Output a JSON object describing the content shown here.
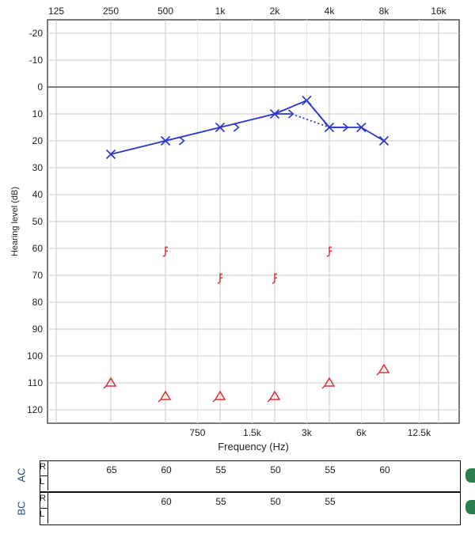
{
  "chart_data": {
    "type": "scatter",
    "xlabel": "Frequency (Hz)",
    "ylabel": "Hearing level (dB)",
    "top_ticks": [
      "125",
      "250",
      "500",
      "1k",
      "2k",
      "4k",
      "8k",
      "16k"
    ],
    "bottom_ticks": [
      "750",
      "1.5k",
      "3k",
      "6k",
      "12.5k"
    ],
    "y_ticks": [
      -20,
      -10,
      0,
      10,
      20,
      30,
      40,
      50,
      60,
      70,
      80,
      90,
      100,
      110,
      120
    ],
    "ylim": [
      -25,
      125
    ],
    "grid": true,
    "series": [
      {
        "marker": "x",
        "color": "#2b35c9",
        "points": [
          {
            "x": 250,
            "y": 25
          },
          {
            "x": 500,
            "y": 20
          },
          {
            "x": 1000,
            "y": 15
          },
          {
            "x": 2000,
            "y": 10
          },
          {
            "x": 3000,
            "y": 5
          },
          {
            "x": 4000,
            "y": 15
          },
          {
            "x": 6000,
            "y": 15
          },
          {
            "x": 8000,
            "y": 20
          }
        ]
      },
      {
        "marker": "x-arrow",
        "color": "#2b35c9",
        "points": [
          {
            "x": 620,
            "y": 20
          },
          {
            "x": 1240,
            "y": 15
          },
          {
            "x": 2480,
            "y": 10
          },
          {
            "x": 4960,
            "y": 15
          }
        ]
      },
      {
        "marker": "bracket",
        "color": "#d9313a",
        "points": [
          {
            "x": 500,
            "y": 61
          },
          {
            "x": 1000,
            "y": 71
          },
          {
            "x": 2000,
            "y": 71
          },
          {
            "x": 4000,
            "y": 61
          }
        ]
      },
      {
        "marker": "triangle",
        "color": "#d9313a",
        "points": [
          {
            "x": 250,
            "y": 110
          },
          {
            "x": 500,
            "y": 115
          },
          {
            "x": 1000,
            "y": 115
          },
          {
            "x": 2000,
            "y": 115
          },
          {
            "x": 4000,
            "y": 110
          },
          {
            "x": 8000,
            "y": 105
          }
        ]
      }
    ]
  },
  "table": {
    "freqs": [
      250,
      500,
      1000,
      2000,
      4000,
      8000
    ],
    "ac": {
      "label": "AC",
      "r_label": "R",
      "l_label": "L",
      "r_values": [
        "65",
        "60",
        "55",
        "50",
        "55",
        "60"
      ]
    },
    "bc": {
      "label": "BC",
      "r_label": "R",
      "l_label": "L",
      "r_values": [
        "",
        "60",
        "55",
        "50",
        "55",
        ""
      ]
    }
  }
}
